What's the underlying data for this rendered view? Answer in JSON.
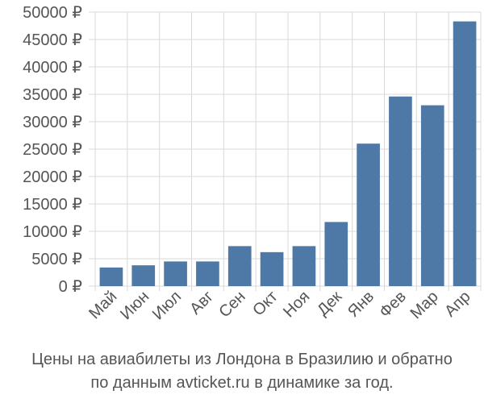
{
  "chart_data": {
    "type": "bar",
    "categories": [
      "Май",
      "Июн",
      "Июл",
      "Авг",
      "Сен",
      "Окт",
      "Ноя",
      "Дек",
      "Янв",
      "Фев",
      "Мар",
      "Апр"
    ],
    "values": [
      3400,
      3800,
      4500,
      4500,
      7300,
      6200,
      7300,
      11700,
      26000,
      34600,
      33000,
      48300
    ],
    "ylim": [
      0,
      50000
    ],
    "yticks": [
      0,
      5000,
      10000,
      15000,
      20000,
      25000,
      30000,
      35000,
      40000,
      45000,
      50000
    ],
    "ytick_labels": [
      "0 ₽",
      "5000 ₽",
      "10000 ₽",
      "15000 ₽",
      "20000 ₽",
      "25000 ₽",
      "30000 ₽",
      "35000 ₽",
      "40000 ₽",
      "45000 ₽",
      "50000 ₽"
    ],
    "bar_color": "#4e79a7",
    "grid": true
  },
  "caption": {
    "line1": "Цены на авиабилеты из Лондона в Бразилию и обратно",
    "line2": "по данным avticket.ru в динамике за год."
  }
}
